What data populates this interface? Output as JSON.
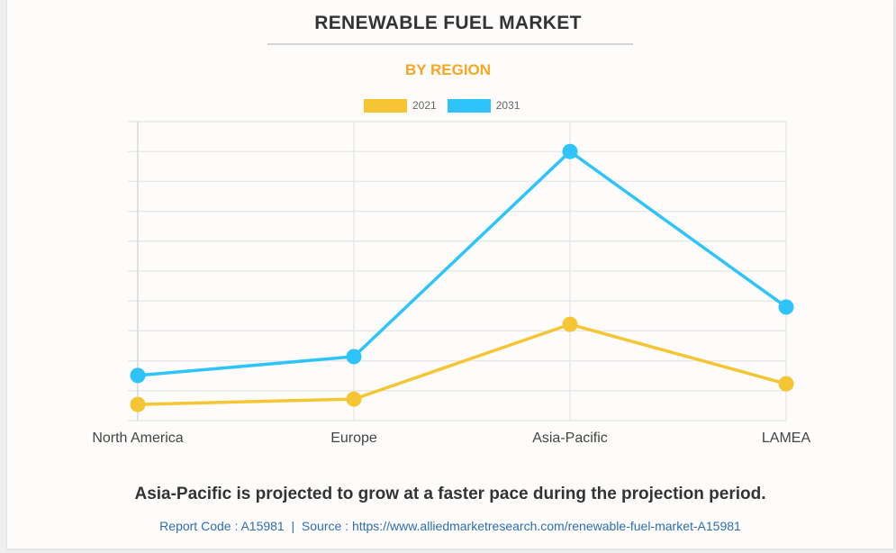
{
  "header": {
    "title": "RENEWABLE FUEL MARKET",
    "subtitle": "BY REGION"
  },
  "legend": [
    {
      "label": "2021",
      "color": "#F5C533"
    },
    {
      "label": "2031",
      "color": "#2EC4FB"
    }
  ],
  "chart_data": {
    "type": "line",
    "title": "RENEWABLE FUEL MARKET",
    "subtitle": "BY REGION",
    "xlabel": "",
    "ylabel": "",
    "categories": [
      "North America",
      "Europe",
      "Asia-Pacific",
      "LAMEA"
    ],
    "series": [
      {
        "name": "2021",
        "color": "#F5C533",
        "values": [
          0.54,
          0.72,
          3.22,
          1.23
        ]
      },
      {
        "name": "2031",
        "color": "#2EC4FB",
        "values": [
          1.51,
          2.14,
          9.0,
          3.8
        ]
      }
    ],
    "ylim": [
      0,
      10
    ],
    "y_gridlines": 10,
    "y_tick_labels_shown": false,
    "grid": true,
    "legend_position": "top-center",
    "units_note": "relative units (no y-axis labels shown)"
  },
  "footer": {
    "caption": "Asia-Pacific is projected to grow at a faster pace during the projection period.",
    "report_code": "Report Code : A15981",
    "separator": "|",
    "source": "Source : https://www.alliedmarketresearch.com/renewable-fuel-market-A15981"
  }
}
